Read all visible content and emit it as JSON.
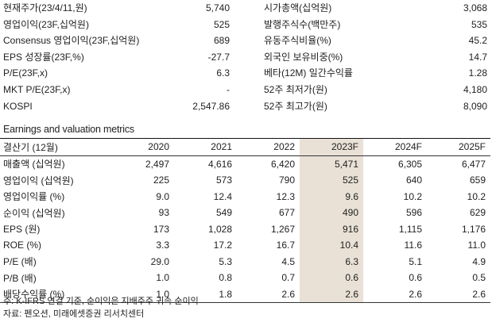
{
  "summary_left": [
    {
      "label": "현재주가(23/4/11,원)",
      "value": "5,740"
    },
    {
      "label": "영업이익(23F,십억원)",
      "value": "525"
    },
    {
      "label": "Consensus 영업이익(23F,십억원)",
      "value": "689"
    },
    {
      "label": "EPS 성장률(23F,%)",
      "value": "-27.7"
    },
    {
      "label": "P/E(23F,x)",
      "value": "6.3"
    },
    {
      "label": "MKT P/E(23F,x)",
      "value": "-"
    },
    {
      "label": "KOSPI",
      "value": "2,547.86"
    }
  ],
  "summary_right": [
    {
      "label": "시가총액(십억원)",
      "value": "3,068"
    },
    {
      "label": "발행주식수(백만주)",
      "value": "535"
    },
    {
      "label": "유동주식비율(%)",
      "value": "45.2"
    },
    {
      "label": "외국인 보유비중(%)",
      "value": "14.7"
    },
    {
      "label": "베타(12M) 일간수익률",
      "value": "1.28"
    },
    {
      "label": "52주 최저가(원)",
      "value": "4,180"
    },
    {
      "label": "52주 최고가(원)",
      "value": "8,090"
    }
  ],
  "section_title": "Earnings and valuation metrics",
  "table": {
    "headers": [
      "결산기 (12월)",
      "2020",
      "2021",
      "2022",
      "2023F",
      "2024F",
      "2025F"
    ],
    "highlight_col": 4,
    "rows": [
      [
        "매출액 (십억원)",
        "2,497",
        "4,616",
        "6,420",
        "5,471",
        "6,305",
        "6,477"
      ],
      [
        "영업이익 (십억원)",
        "225",
        "573",
        "790",
        "525",
        "640",
        "659"
      ],
      [
        "영업이익률 (%)",
        "9.0",
        "12.4",
        "12.3",
        "9.6",
        "10.2",
        "10.2"
      ],
      [
        "순이익 (십억원)",
        "93",
        "549",
        "677",
        "490",
        "596",
        "629"
      ],
      [
        "EPS (원)",
        "173",
        "1,028",
        "1,267",
        "916",
        "1,115",
        "1,176"
      ],
      [
        "ROE (%)",
        "3.3",
        "17.2",
        "16.7",
        "10.4",
        "11.6",
        "11.0"
      ],
      [
        "P/E (배)",
        "29.0",
        "5.3",
        "4.5",
        "6.3",
        "5.1",
        "4.9"
      ],
      [
        "P/B (배)",
        "1.0",
        "0.8",
        "0.7",
        "0.6",
        "0.6",
        "0.5"
      ],
      [
        "배당수익률 (%)",
        "1.0",
        "1.8",
        "2.6",
        "2.6",
        "2.6",
        "2.6"
      ]
    ]
  },
  "notes": [
    "주: K-IFRS 연결 기준, 순이익은 지배주주 귀속 순이익",
    "자료: 펜오션, 미래에셋증권 리서치센터"
  ]
}
